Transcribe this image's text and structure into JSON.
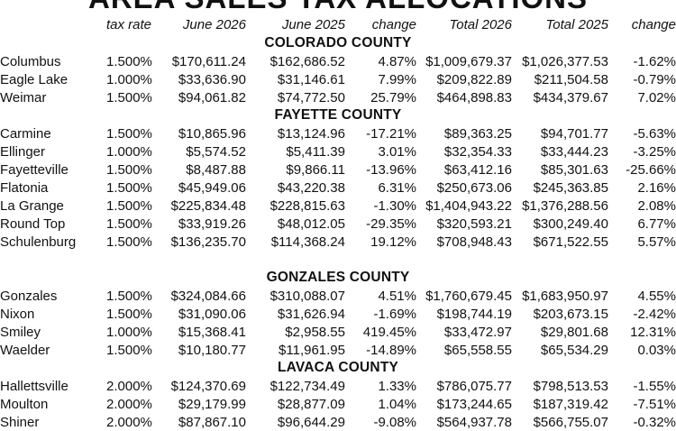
{
  "title": "AREA SALES TAX ALLOCATIONS",
  "headers": {
    "rate": "tax rate",
    "june_2026": "June 2026",
    "june_2025": "June 2025",
    "change": "change",
    "total_2026": "Total 2026",
    "total_2025": "Total 2025",
    "change_total": "change"
  },
  "counties": [
    {
      "name": "COLORADO COUNTY",
      "rows": [
        {
          "city": "Columbus",
          "rate": "1.500%",
          "june_2026": "$170,611.24",
          "june_2025": "$162,686.52",
          "change": "4.87%",
          "total_2026": "$1,009,679.37",
          "total_2025": "$1,026,377.53",
          "change_total": "-1.62%"
        },
        {
          "city": "Eagle Lake",
          "rate": "1.000%",
          "june_2026": "$33,636.90",
          "june_2025": "$31,146.61",
          "change": "7.99%",
          "total_2026": "$209,822.89",
          "total_2025": "$211,504.58",
          "change_total": "-0.79%"
        },
        {
          "city": "Weimar",
          "rate": "1.500%",
          "june_2026": "$94,061.82",
          "june_2025": "$74,772.50",
          "change": "25.79%",
          "total_2026": "$464,898.83",
          "total_2025": "$434,379.67",
          "change_total": "7.02%"
        }
      ]
    },
    {
      "name": "FAYETTE COUNTY",
      "rows": [
        {
          "city": "Carmine",
          "rate": "1.500%",
          "june_2026": "$10,865.96",
          "june_2025": "$13,124.96",
          "change": "-17.21%",
          "total_2026": "$89,363.25",
          "total_2025": "$94,701.77",
          "change_total": "-5.63%"
        },
        {
          "city": "Ellinger",
          "rate": "1.000%",
          "june_2026": "$5,574.52",
          "june_2025": "$5,411.39",
          "change": "3.01%",
          "total_2026": "$32,354.33",
          "total_2025": "$33,444.23",
          "change_total": "-3.25%"
        },
        {
          "city": "Fayetteville",
          "rate": "1.500%",
          "june_2026": "$8,487.88",
          "june_2025": "$9,866.11",
          "change": "-13.96%",
          "total_2026": "$63,412.16",
          "total_2025": "$85,301.63",
          "change_total": "-25.66%"
        },
        {
          "city": "Flatonia",
          "rate": "1.500%",
          "june_2026": "$45,949.06",
          "june_2025": "$43,220.38",
          "change": "6.31%",
          "total_2026": "$250,673.06",
          "total_2025": "$245,363.85",
          "change_total": "2.16%"
        },
        {
          "city": "La Grange",
          "rate": "1.500%",
          "june_2026": "$225,834.48",
          "june_2025": "$228,815.63",
          "change": "-1.30%",
          "total_2026": "$1,404,943.22",
          "total_2025": "$1,376,288.56",
          "change_total": "2.08%"
        },
        {
          "city": "Round Top",
          "rate": "1.500%",
          "june_2026": "$33,919.26",
          "june_2025": "$48,012.05",
          "change": "-29.35%",
          "total_2026": "$320,593.21",
          "total_2025": "$300,249.40",
          "change_total": "6.77%"
        },
        {
          "city": "Schulenburg",
          "rate": "1.500%",
          "june_2026": "$136,235.70",
          "june_2025": "$114,368.24",
          "change": "19.12%",
          "total_2026": "$708,948.43",
          "total_2025": "$671,522.55",
          "change_total": "5.57%"
        }
      ]
    },
    {
      "name": "GONZALES COUNTY",
      "rows": [
        {
          "city": "Gonzales",
          "rate": "1.500%",
          "june_2026": "$324,084.66",
          "june_2025": "$310,088.07",
          "change": "4.51%",
          "total_2026": "$1,760,679.45",
          "total_2025": "$1,683,950.97",
          "change_total": "4.55%"
        },
        {
          "city": "Nixon",
          "rate": "1.500%",
          "june_2026": "$31,090.06",
          "june_2025": "$31,626.94",
          "change": "-1.69%",
          "total_2026": "$198,744.19",
          "total_2025": "$203,673.15",
          "change_total": "-2.42%"
        },
        {
          "city": "Smiley",
          "rate": "1.000%",
          "june_2026": "$15,368.41",
          "june_2025": "$2,958.55",
          "change": "419.45%",
          "total_2026": "$33,472.97",
          "total_2025": "$29,801.68",
          "change_total": "12.31%"
        },
        {
          "city": "Waelder",
          "rate": "1.500%",
          "june_2026": "$10,180.77",
          "june_2025": "$11,961.95",
          "change": "-14.89%",
          "total_2026": "$65,558.55",
          "total_2025": "$65,534.29",
          "change_total": "0.03%"
        }
      ]
    },
    {
      "name": "LAVACA COUNTY",
      "rows": [
        {
          "city": "Hallettsville",
          "rate": "2.000%",
          "june_2026": "$124,370.69",
          "june_2025": "$122,734.49",
          "change": "1.33%",
          "total_2026": "$786,075.77",
          "total_2025": "$798,513.53",
          "change_total": "-1.55%"
        },
        {
          "city": "Moulton",
          "rate": "2.000%",
          "june_2026": "$29,179.99",
          "june_2025": "$28,877.09",
          "change": "1.04%",
          "total_2026": "$173,244.65",
          "total_2025": "$187,319.42",
          "change_total": "-7.51%"
        },
        {
          "city": "Shiner",
          "rate": "2.000%",
          "june_2026": "$87,867.10",
          "june_2025": "$96,644.29",
          "change": "-9.08%",
          "total_2026": "$564,937.78",
          "total_2025": "$566,755.07",
          "change_total": "-0.32%"
        }
      ]
    }
  ]
}
